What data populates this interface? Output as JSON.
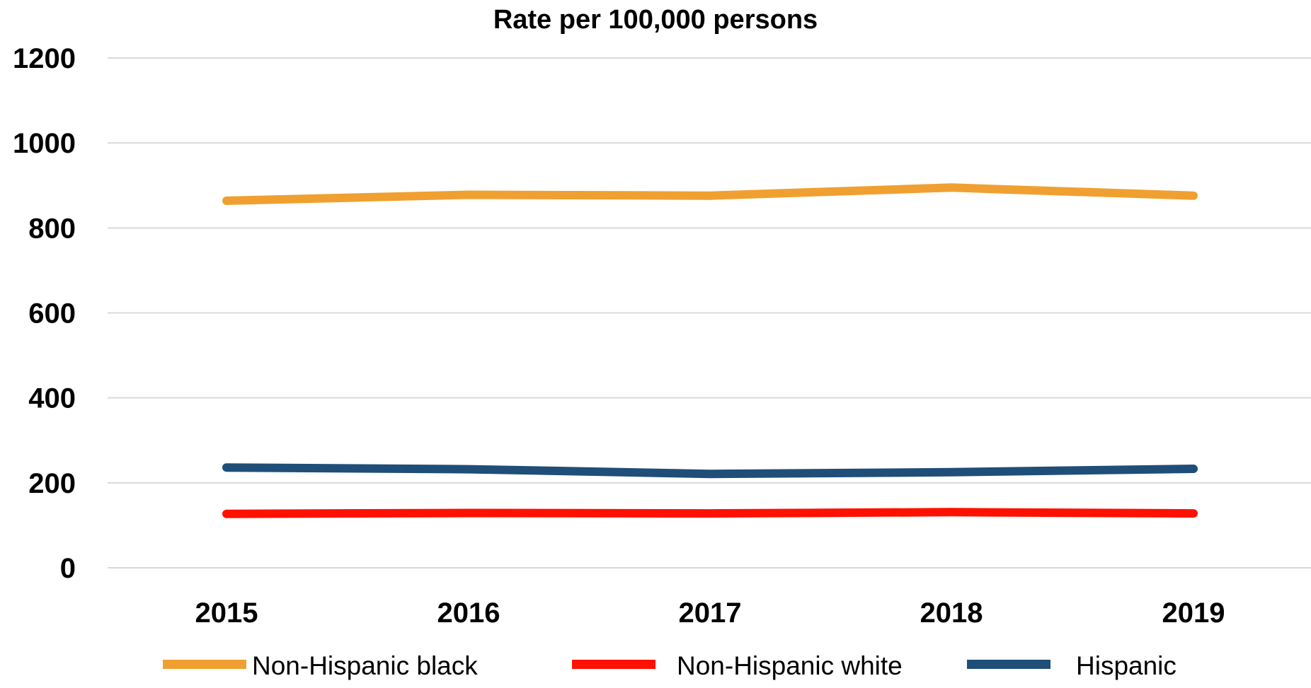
{
  "chart_data": {
    "type": "line",
    "title": "Rate per 100,000 persons",
    "xlabel": "",
    "ylabel": "",
    "categories": [
      "2015",
      "2016",
      "2017",
      "2018",
      "2019"
    ],
    "ylim": [
      0,
      1200
    ],
    "yticks": [
      0,
      200,
      400,
      600,
      800,
      1000,
      1200
    ],
    "grid": true,
    "legend_position": "bottom",
    "series": [
      {
        "name": "Non-Hispanic black",
        "color": "#F0A030",
        "values": [
          864,
          878,
          876,
          895,
          876
        ]
      },
      {
        "name": "Non-Hispanic white",
        "color": "#FF1100",
        "values": [
          127,
          129,
          128,
          131,
          128
        ]
      },
      {
        "name": "Hispanic",
        "color": "#1F4E79",
        "values": [
          236,
          232,
          221,
          225,
          233
        ]
      }
    ]
  }
}
